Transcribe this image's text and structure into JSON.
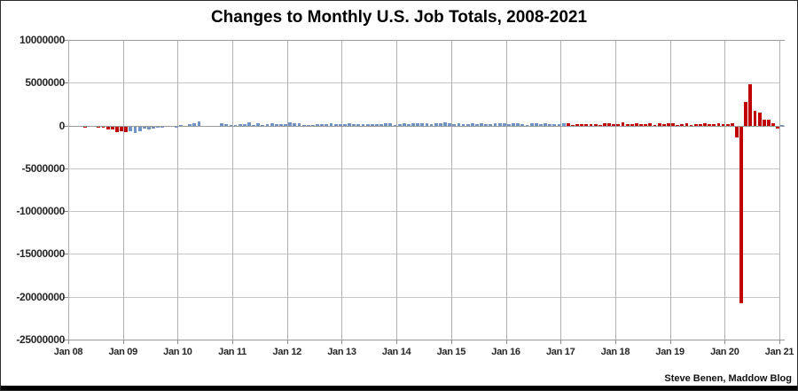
{
  "title": "Changes to Monthly U.S. Job Totals, 2008-2021",
  "attribution": "Steve Benen, Maddow Blog",
  "colors": {
    "republican_bar": "#c00000",
    "democrat_bar": "#7093c5",
    "grid_horizontal": "#c6c6c6",
    "grid_vertical": "#b0b0b0",
    "axis_line": "#9a9a9a",
    "label_text": "#262626",
    "bottom_bar": "#000000"
  },
  "chart_data": {
    "type": "bar",
    "title": "Changes to Monthly U.S. Job Totals, 2008-2021",
    "xlabel": "",
    "ylabel": "",
    "x_start": "Jan 2008",
    "x_end": "Jan 2021",
    "x_tick_labels": [
      "Jan 08",
      "Jan 09",
      "Jan 10",
      "Jan 11",
      "Jan 12",
      "Jan 13",
      "Jan 14",
      "Jan 15",
      "Jan 16",
      "Jan 17",
      "Jan 18",
      "Jan 19",
      "Jan 20",
      "Jan 21"
    ],
    "y_tick_labels": [
      "10000000",
      "5000000",
      "0",
      "-5000000",
      "-10000000",
      "-15000000",
      "-20000000",
      "-25000000"
    ],
    "ylim": [
      -25000000,
      10000000
    ],
    "y_tick_step": 5000000,
    "grid": true,
    "legend": false,
    "unit": "jobs (monthly change)",
    "values_thousands": [
      -17,
      -83,
      -72,
      -214,
      -182,
      -172,
      -210,
      -259,
      -452,
      -474,
      -765,
      -697,
      -798,
      -701,
      -826,
      -684,
      -354,
      -467,
      -327,
      -216,
      -227,
      -198,
      -6,
      -283,
      18,
      -50,
      156,
      251,
      516,
      -122,
      -61,
      -42,
      -57,
      241,
      137,
      71,
      70,
      168,
      212,
      322,
      102,
      217,
      106,
      122,
      221,
      183,
      164,
      196,
      360,
      226,
      243,
      96,
      110,
      88,
      160,
      150,
      161,
      225,
      203,
      214,
      197,
      280,
      141,
      203,
      199,
      201,
      149,
      202,
      164,
      237,
      274,
      84,
      144,
      222,
      203,
      304,
      229,
      267,
      243,
      203,
      271,
      243,
      321,
      256,
      201,
      266,
      119,
      187,
      260,
      206,
      277,
      151,
      149,
      295,
      280,
      271,
      168,
      233,
      225,
      153,
      43,
      297,
      291,
      176,
      249,
      124,
      164,
      155,
      216,
      232,
      50,
      207,
      145,
      210,
      138,
      208,
      38,
      271,
      216,
      175,
      176,
      324,
      155,
      175,
      268,
      208,
      178,
      282,
      108,
      277,
      196,
      227,
      312,
      56,
      147,
      216,
      62,
      178,
      166,
      219,
      184,
      185,
      261,
      184,
      214,
      251,
      -1373,
      -20787,
      2725,
      4781,
      1761,
      1493,
      711,
      680,
      264,
      -306,
      49
    ],
    "color_segments": [
      {
        "from_index": 0,
        "to_index": 12,
        "color": "#c00000"
      },
      {
        "from_index": 13,
        "to_index": 108,
        "color": "#7093c5"
      },
      {
        "from_index": 109,
        "to_index": 155,
        "color": "#c00000"
      },
      {
        "from_index": 156,
        "to_index": 156,
        "color": "#7093c5"
      }
    ]
  }
}
